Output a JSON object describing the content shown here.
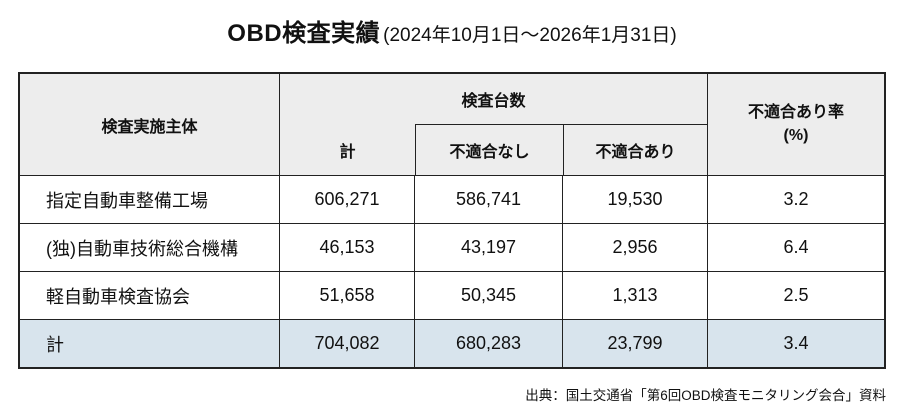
{
  "title": {
    "main": "OBD検査実績",
    "period": "(2024年10月1日～2026年1月31日)"
  },
  "table": {
    "header": {
      "entity": "検査実施主体",
      "count_group": "検査台数",
      "total": "計",
      "pass": "不適合なし",
      "fail": "不適合あり",
      "fail_rate_line1": "不適合あり率",
      "fail_rate_line2": "(%)"
    },
    "rows": [
      {
        "entity": "指定自動車整備工場",
        "total": "606,271",
        "pass": "586,741",
        "fail": "19,530",
        "rate": "3.2"
      },
      {
        "entity": "(独)自動車技術総合機構",
        "total": "46,153",
        "pass": "43,197",
        "fail": "2,956",
        "rate": "6.4"
      },
      {
        "entity": "軽自動車検査協会",
        "total": "51,658",
        "pass": "50,345",
        "fail": "1,313",
        "rate": "2.5"
      },
      {
        "entity": "計",
        "total": "704,082",
        "pass": "680,283",
        "fail": "23,799",
        "rate": "3.4"
      }
    ]
  },
  "source": "出典：国土交通省「第6回OBD検査モニタリング会合」資料",
  "colors": {
    "header_bg": "#ededed",
    "total_row_bg": "#d8e4ed",
    "border": "#222222",
    "text": "#111111",
    "page_bg": "#ffffff"
  },
  "chart_data": {
    "type": "table",
    "title": "OBD検査実績(2024年10月1日～2026年1月31日)",
    "columns": [
      "検査実施主体",
      "検査台数 計",
      "検査台数 不適合なし",
      "検査台数 不適合あり",
      "不適合あり率(%)"
    ],
    "rows": [
      [
        "指定自動車整備工場",
        606271,
        586741,
        19530,
        3.2
      ],
      [
        "(独)自動車技術総合機構",
        46153,
        43197,
        2956,
        6.4
      ],
      [
        "軽自動車検査協会",
        51658,
        50345,
        1313,
        2.5
      ],
      [
        "計",
        704082,
        680283,
        23799,
        3.4
      ]
    ],
    "source": "出典：国土交通省「第6回OBD検査モニタリング会合」資料"
  }
}
